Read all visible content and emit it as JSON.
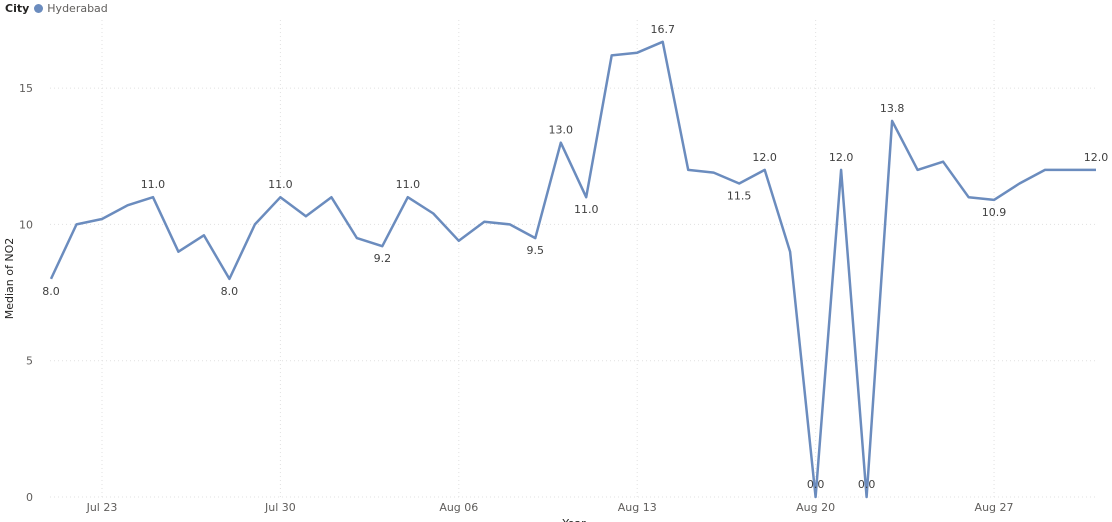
{
  "legend": {
    "title": "City",
    "items": [
      {
        "name": "Hyderabad",
        "color": "#6b8cbe"
      }
    ]
  },
  "chart_data": {
    "type": "line",
    "ylabel": "Median of NO2",
    "xlabel": "Year",
    "ylim": [
      0,
      17.5
    ],
    "yticks": [
      0,
      5,
      10,
      15
    ],
    "grid": true,
    "legend_position": "top-left",
    "x_tick_labels": [
      {
        "index": 2,
        "label": "Jul 23"
      },
      {
        "index": 9,
        "label": "Jul 30"
      },
      {
        "index": 16,
        "label": "Aug 06"
      },
      {
        "index": 23,
        "label": "Aug 13"
      },
      {
        "index": 30,
        "label": "Aug 20"
      },
      {
        "index": 37,
        "label": "Aug 27"
      }
    ],
    "series": [
      {
        "name": "Hyderabad",
        "color": "#6b8cbe",
        "start_date": "Jul 21",
        "values": [
          8.0,
          10.0,
          10.2,
          10.7,
          11.0,
          9.0,
          9.6,
          8.0,
          10.0,
          11.0,
          10.3,
          11.0,
          9.5,
          9.2,
          11.0,
          10.4,
          9.4,
          10.1,
          10.0,
          9.5,
          13.0,
          11.0,
          16.2,
          16.3,
          16.7,
          12.0,
          11.9,
          11.5,
          12.0,
          9.0,
          0.0,
          12.0,
          0.0,
          13.8,
          12.0,
          12.3,
          11.0,
          10.9,
          11.5,
          12.0,
          12.0,
          12.0
        ]
      }
    ],
    "data_labels": [
      {
        "index": 0,
        "text": "8.0",
        "pos": "below"
      },
      {
        "index": 4,
        "text": "11.0",
        "pos": "above"
      },
      {
        "index": 7,
        "text": "8.0",
        "pos": "below"
      },
      {
        "index": 9,
        "text": "11.0",
        "pos": "above"
      },
      {
        "index": 13,
        "text": "9.2",
        "pos": "below"
      },
      {
        "index": 14,
        "text": "11.0",
        "pos": "above"
      },
      {
        "index": 19,
        "text": "9.5",
        "pos": "below"
      },
      {
        "index": 20,
        "text": "13.0",
        "pos": "above"
      },
      {
        "index": 21,
        "text": "11.0",
        "pos": "below"
      },
      {
        "index": 24,
        "text": "16.7",
        "pos": "above"
      },
      {
        "index": 27,
        "text": "11.5",
        "pos": "below"
      },
      {
        "index": 28,
        "text": "12.0",
        "pos": "above"
      },
      {
        "index": 30,
        "text": "0.0",
        "pos": "above"
      },
      {
        "index": 31,
        "text": "12.0",
        "pos": "above"
      },
      {
        "index": 32,
        "text": "0.0",
        "pos": "above"
      },
      {
        "index": 33,
        "text": "13.8",
        "pos": "above"
      },
      {
        "index": 37,
        "text": "10.9",
        "pos": "below"
      },
      {
        "index": 41,
        "text": "12.0",
        "pos": "above"
      }
    ]
  }
}
